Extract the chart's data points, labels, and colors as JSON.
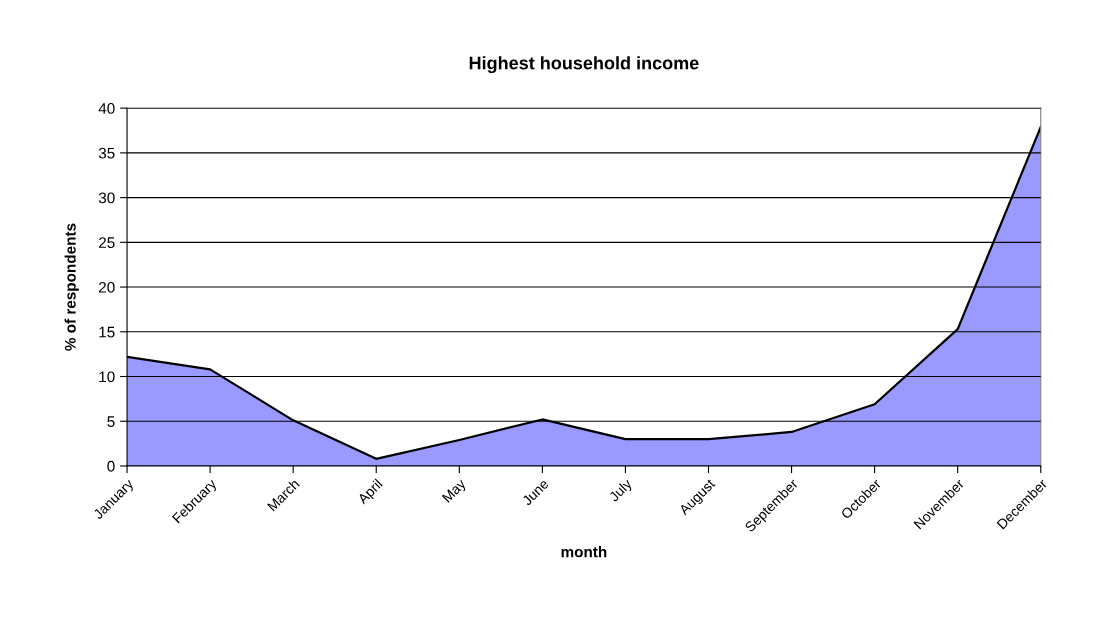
{
  "chart_data": {
    "type": "area",
    "title": "Highest household income",
    "xlabel": "month",
    "ylabel": "% of respondents",
    "categories": [
      "January",
      "February",
      "March",
      "April",
      "May",
      "June",
      "July",
      "August",
      "September",
      "October",
      "November",
      "December"
    ],
    "values": [
      12.2,
      10.8,
      5.1,
      0.8,
      2.9,
      5.2,
      3.0,
      3.0,
      3.8,
      6.9,
      15.3,
      37.9
    ],
    "color": "#9999ff",
    "ylim": [
      0,
      40
    ],
    "yticks": [
      0,
      5,
      10,
      15,
      20,
      25,
      30,
      35,
      40
    ],
    "grid": "y",
    "legend": false
  }
}
